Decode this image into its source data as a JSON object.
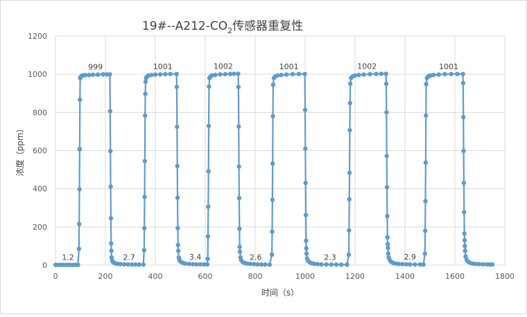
{
  "chart_data": {
    "type": "scatter",
    "title": "19#--A212-CO",
    "title_subscript": "2",
    "title_suffix": "传感器重复性",
    "xlabel": "时间（s）",
    "ylabel": "浓度（ppm）",
    "xlim": [
      0,
      1800
    ],
    "ylim": [
      0,
      1200
    ],
    "xticks": [
      0,
      200,
      400,
      600,
      800,
      1000,
      1200,
      1400,
      1600,
      1800
    ],
    "yticks": [
      0,
      200,
      400,
      600,
      800,
      1000,
      1200
    ],
    "grid": true,
    "legend": "none",
    "color": "#5b9bd5",
    "points": [
      [
        0,
        1.2
      ],
      [
        10,
        1.2
      ],
      [
        20,
        1.2
      ],
      [
        30,
        1.2
      ],
      [
        40,
        1.2
      ],
      [
        50,
        1.2
      ],
      [
        60,
        1.2
      ],
      [
        70,
        1.2
      ],
      [
        80,
        1.2
      ],
      [
        90,
        1.2
      ],
      [
        94,
        85
      ],
      [
        95,
        215
      ],
      [
        96,
        397
      ],
      [
        97,
        607
      ],
      [
        98,
        866
      ],
      [
        99,
        980
      ],
      [
        102,
        988
      ],
      [
        106,
        992
      ],
      [
        112,
        994
      ],
      [
        120,
        995
      ],
      [
        135,
        996
      ],
      [
        150,
        997
      ],
      [
        170,
        998
      ],
      [
        190,
        999
      ],
      [
        205,
        999
      ],
      [
        218,
        999
      ],
      [
        219,
        806
      ],
      [
        220,
        597
      ],
      [
        221,
        411
      ],
      [
        222,
        245
      ],
      [
        223,
        113
      ],
      [
        224,
        75
      ],
      [
        225,
        40
      ],
      [
        227,
        25
      ],
      [
        230,
        17
      ],
      [
        235,
        12
      ],
      [
        242,
        8
      ],
      [
        250,
        6
      ],
      [
        260,
        5
      ],
      [
        275,
        4
      ],
      [
        290,
        3.5
      ],
      [
        305,
        3
      ],
      [
        320,
        2.8
      ],
      [
        335,
        2.7
      ],
      [
        352,
        2.7
      ],
      [
        355,
        78
      ],
      [
        356,
        193
      ],
      [
        357,
        357
      ],
      [
        358,
        545
      ],
      [
        359,
        783
      ],
      [
        360,
        897
      ],
      [
        361,
        960
      ],
      [
        363,
        980
      ],
      [
        367,
        988
      ],
      [
        373,
        993
      ],
      [
        385,
        996
      ],
      [
        400,
        998
      ],
      [
        420,
        999
      ],
      [
        440,
        1000
      ],
      [
        460,
        1001
      ],
      [
        485,
        1001
      ],
      [
        486,
        933
      ],
      [
        487,
        724
      ],
      [
        488,
        519
      ],
      [
        489,
        353
      ],
      [
        490,
        193
      ],
      [
        491,
        105
      ],
      [
        492,
        75
      ],
      [
        494,
        40
      ],
      [
        497,
        25
      ],
      [
        502,
        17
      ],
      [
        510,
        12
      ],
      [
        520,
        8
      ],
      [
        535,
        6
      ],
      [
        550,
        5
      ],
      [
        565,
        4
      ],
      [
        580,
        3.8
      ],
      [
        595,
        3.5
      ],
      [
        608,
        3.4
      ],
      [
        610,
        33
      ],
      [
        611,
        150
      ],
      [
        612,
        306
      ],
      [
        613,
        491
      ],
      [
        614,
        729
      ],
      [
        615,
        935
      ],
      [
        617,
        980
      ],
      [
        621,
        988
      ],
      [
        627,
        993
      ],
      [
        640,
        996
      ],
      [
        660,
        999
      ],
      [
        680,
        1000
      ],
      [
        700,
        1001
      ],
      [
        715,
        1002
      ],
      [
        732,
        1002
      ],
      [
        733,
        933
      ],
      [
        734,
        726
      ],
      [
        735,
        516
      ],
      [
        736,
        351
      ],
      [
        737,
        191
      ],
      [
        738,
        95
      ],
      [
        739,
        70
      ],
      [
        741,
        40
      ],
      [
        744,
        25
      ],
      [
        750,
        16
      ],
      [
        758,
        11
      ],
      [
        768,
        8
      ],
      [
        780,
        6
      ],
      [
        795,
        5
      ],
      [
        810,
        4
      ],
      [
        825,
        3.2
      ],
      [
        840,
        2.8
      ],
      [
        858,
        2.6
      ],
      [
        867,
        55
      ],
      [
        868,
        175
      ],
      [
        869,
        342
      ],
      [
        870,
        532
      ],
      [
        871,
        780
      ],
      [
        872,
        945
      ],
      [
        875,
        980
      ],
      [
        880,
        988
      ],
      [
        890,
        993
      ],
      [
        905,
        996
      ],
      [
        925,
        998
      ],
      [
        950,
        1000
      ],
      [
        975,
        1001
      ],
      [
        999,
        1001
      ],
      [
        1000,
        813
      ],
      [
        1001,
        610
      ],
      [
        1002,
        430
      ],
      [
        1003,
        262
      ],
      [
        1004,
        128
      ],
      [
        1005,
        88
      ],
      [
        1006,
        60
      ],
      [
        1008,
        35
      ],
      [
        1012,
        22
      ],
      [
        1018,
        15
      ],
      [
        1026,
        10
      ],
      [
        1036,
        7
      ],
      [
        1050,
        5
      ],
      [
        1065,
        4
      ],
      [
        1085,
        3.3
      ],
      [
        1105,
        2.8
      ],
      [
        1125,
        2.5
      ],
      [
        1145,
        2.4
      ],
      [
        1168,
        2.3
      ],
      [
        1175,
        55
      ],
      [
        1176,
        182
      ],
      [
        1177,
        345
      ],
      [
        1178,
        483
      ],
      [
        1179,
        707
      ],
      [
        1180,
        848
      ],
      [
        1181,
        950
      ],
      [
        1184,
        980
      ],
      [
        1190,
        988
      ],
      [
        1200,
        993
      ],
      [
        1215,
        996
      ],
      [
        1235,
        998
      ],
      [
        1260,
        1000
      ],
      [
        1285,
        1001
      ],
      [
        1305,
        1002
      ],
      [
        1324,
        1002
      ],
      [
        1325,
        950
      ],
      [
        1326,
        800
      ],
      [
        1327,
        572
      ],
      [
        1328,
        408
      ],
      [
        1329,
        256
      ],
      [
        1330,
        145
      ],
      [
        1331,
        110
      ],
      [
        1332,
        90
      ],
      [
        1333,
        60
      ],
      [
        1335,
        40
      ],
      [
        1339,
        26
      ],
      [
        1345,
        17
      ],
      [
        1353,
        11
      ],
      [
        1363,
        8
      ],
      [
        1375,
        6
      ],
      [
        1390,
        5
      ],
      [
        1405,
        4
      ],
      [
        1420,
        3.5
      ],
      [
        1440,
        3.1
      ],
      [
        1460,
        2.9
      ],
      [
        1474,
        2.9
      ],
      [
        1480,
        60
      ],
      [
        1481,
        180
      ],
      [
        1482,
        335
      ],
      [
        1483,
        537
      ],
      [
        1484,
        783
      ],
      [
        1485,
        948
      ],
      [
        1488,
        980
      ],
      [
        1493,
        988
      ],
      [
        1502,
        993
      ],
      [
        1515,
        996
      ],
      [
        1535,
        998
      ],
      [
        1560,
        1000
      ],
      [
        1585,
        1001
      ],
      [
        1610,
        1001
      ],
      [
        1632,
        1001
      ],
      [
        1633,
        953
      ],
      [
        1634,
        775
      ],
      [
        1635,
        598
      ],
      [
        1636,
        430
      ],
      [
        1637,
        277
      ],
      [
        1638,
        165
      ],
      [
        1639,
        130
      ],
      [
        1640,
        100
      ],
      [
        1641,
        75
      ],
      [
        1643,
        45
      ],
      [
        1647,
        28
      ],
      [
        1653,
        18
      ],
      [
        1661,
        12
      ],
      [
        1671,
        8
      ],
      [
        1683,
        6
      ],
      [
        1697,
        5
      ],
      [
        1712,
        4
      ],
      [
        1727,
        3.5
      ],
      [
        1740,
        3.2
      ],
      [
        1750,
        3
      ]
    ],
    "annotations": [
      {
        "text": "1.2",
        "x": 50,
        "y": 1.2
      },
      {
        "text": "999",
        "x": 160,
        "y": 999
      },
      {
        "text": "2.7",
        "x": 295,
        "y": 2.7
      },
      {
        "text": "1001",
        "x": 430,
        "y": 1001
      },
      {
        "text": "3.4",
        "x": 560,
        "y": 3.4
      },
      {
        "text": "1002",
        "x": 672,
        "y": 1002
      },
      {
        "text": "2.6",
        "x": 802,
        "y": 2.6
      },
      {
        "text": "1001",
        "x": 935,
        "y": 1001
      },
      {
        "text": "2.3",
        "x": 1100,
        "y": 2.3
      },
      {
        "text": "1002",
        "x": 1248,
        "y": 1002
      },
      {
        "text": "2.9",
        "x": 1420,
        "y": 2.9
      },
      {
        "text": "1001",
        "x": 1575,
        "y": 1001
      }
    ]
  }
}
